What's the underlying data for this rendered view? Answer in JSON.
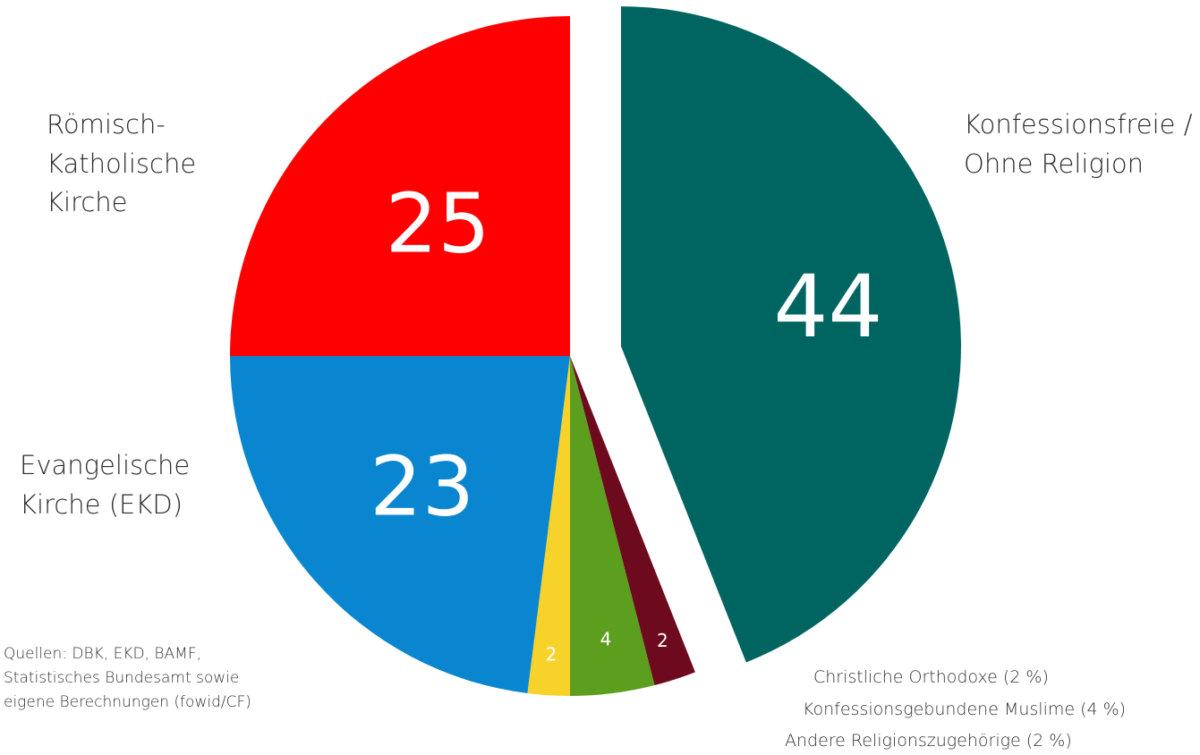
{
  "chart_data": {
    "type": "pie",
    "slices": [
      {
        "name": "Konfessionsfreie / Ohne Religion",
        "value": 44,
        "color": "#006561",
        "label": "44",
        "exploded": true
      },
      {
        "name": "Andere Religionszugehörige",
        "value": 2,
        "color": "#6d0a1e",
        "label": "2"
      },
      {
        "name": "Konfessionsgebundene Muslime",
        "value": 4,
        "color": "#5c9e1e",
        "label": "4"
      },
      {
        "name": "Christliche Orthodoxe",
        "value": 2,
        "color": "#f7d22b",
        "label": "2"
      },
      {
        "name": "Evangelische Kirche (EKD)",
        "value": 23,
        "color": "#0a86d0",
        "label": "23"
      },
      {
        "name": "Römisch-Katholische Kirche",
        "value": 25,
        "color": "#fe0000",
        "label": "25"
      }
    ]
  },
  "labels": {
    "catholic": "Römisch-\nKatholische\nKirche",
    "nonreligious": "Konfessionsfreie /\nOhne Religion",
    "protestant": "Evangelische\nKirche (EKD)"
  },
  "legend": [
    "Christliche Orthodoxe (2 %)",
    "Konfessionsgebundene Muslime (4 %)",
    "Andere Religionszugehörige (2 %)"
  ],
  "source": "Quellen: DBK, EKD, BAMF,\nStatistisches Bundesamt sowie\neigene Berechnungen (fowid/CF)"
}
